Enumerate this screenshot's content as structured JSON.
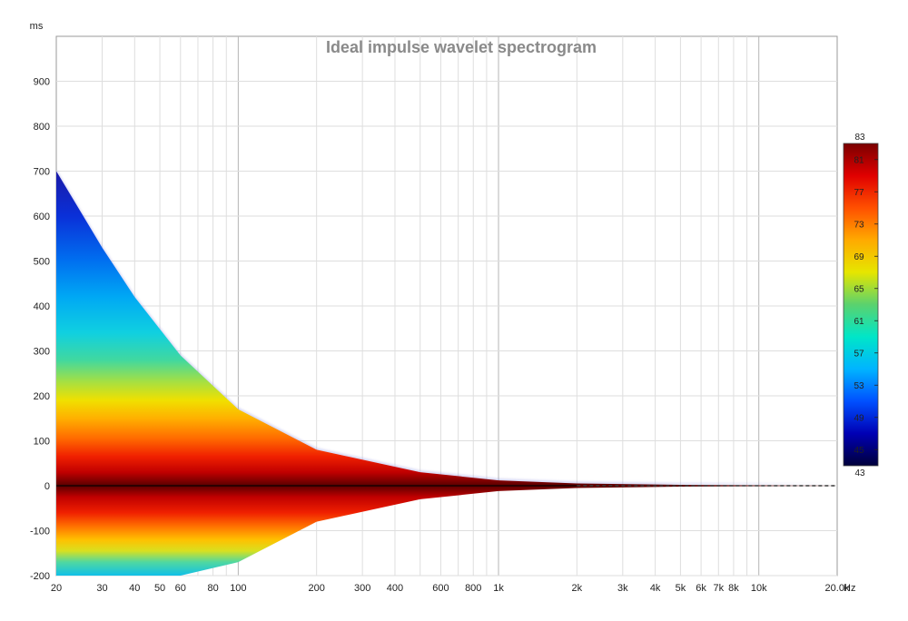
{
  "chart_data": {
    "type": "heatmap",
    "title": "Ideal impulse wavelet spectrogram",
    "x_scale": "log",
    "xlim": [
      20,
      20000
    ],
    "ylim": [
      -200,
      1000
    ],
    "x_unit": "Hz",
    "y_unit": "ms",
    "x_ticks": [
      {
        "value": 20,
        "label": "20"
      },
      {
        "value": 30,
        "label": "30"
      },
      {
        "value": 40,
        "label": "40"
      },
      {
        "value": 50,
        "label": "50"
      },
      {
        "value": 60,
        "label": "60"
      },
      {
        "value": 80,
        "label": "80"
      },
      {
        "value": 100,
        "label": "100"
      },
      {
        "value": 200,
        "label": "200"
      },
      {
        "value": 300,
        "label": "300"
      },
      {
        "value": 400,
        "label": "400"
      },
      {
        "value": 600,
        "label": "600"
      },
      {
        "value": 800,
        "label": "800"
      },
      {
        "value": 1000,
        "label": "1k"
      },
      {
        "value": 2000,
        "label": "2k"
      },
      {
        "value": 3000,
        "label": "3k"
      },
      {
        "value": 4000,
        "label": "4k"
      },
      {
        "value": 5000,
        "label": "5k"
      },
      {
        "value": 6000,
        "label": "6k"
      },
      {
        "value": 7000,
        "label": "7k"
      },
      {
        "value": 8000,
        "label": "8k"
      },
      {
        "value": 10000,
        "label": "10k"
      },
      {
        "value": 20000,
        "label": "20.0k"
      }
    ],
    "y_ticks": [
      {
        "value": 900,
        "label": "900"
      },
      {
        "value": 800,
        "label": "800"
      },
      {
        "value": 700,
        "label": "700"
      },
      {
        "value": 600,
        "label": "600"
      },
      {
        "value": 500,
        "label": "500"
      },
      {
        "value": 400,
        "label": "400"
      },
      {
        "value": 300,
        "label": "300"
      },
      {
        "value": 200,
        "label": "200"
      },
      {
        "value": 100,
        "label": "100"
      },
      {
        "value": 0,
        "label": "0"
      },
      {
        "value": -100,
        "label": "-100"
      },
      {
        "value": -200,
        "label": "-200"
      }
    ],
    "grid": true,
    "envelope": {
      "freq_hz": [
        20,
        30,
        40,
        60,
        100,
        200,
        500,
        1000,
        2000,
        5000,
        20000
      ],
      "upper_ms": [
        700,
        530,
        420,
        290,
        170,
        80,
        30,
        12,
        5,
        2,
        0
      ],
      "lower_ms": [
        -200,
        -200,
        -200,
        -200,
        -170,
        -80,
        -30,
        -12,
        -5,
        -2,
        0
      ]
    },
    "peak_line_ms": 0,
    "colorbar": {
      "min": 43,
      "max": 83,
      "ticks": [
        81,
        77,
        73,
        69,
        65,
        61,
        57,
        53,
        49,
        45
      ],
      "colors": [
        "#00003a",
        "#0000b4",
        "#0050ff",
        "#00b4ff",
        "#00e6c8",
        "#5ad26e",
        "#e6e600",
        "#ffaa00",
        "#ff5000",
        "#e00000",
        "#7a0000"
      ]
    }
  }
}
